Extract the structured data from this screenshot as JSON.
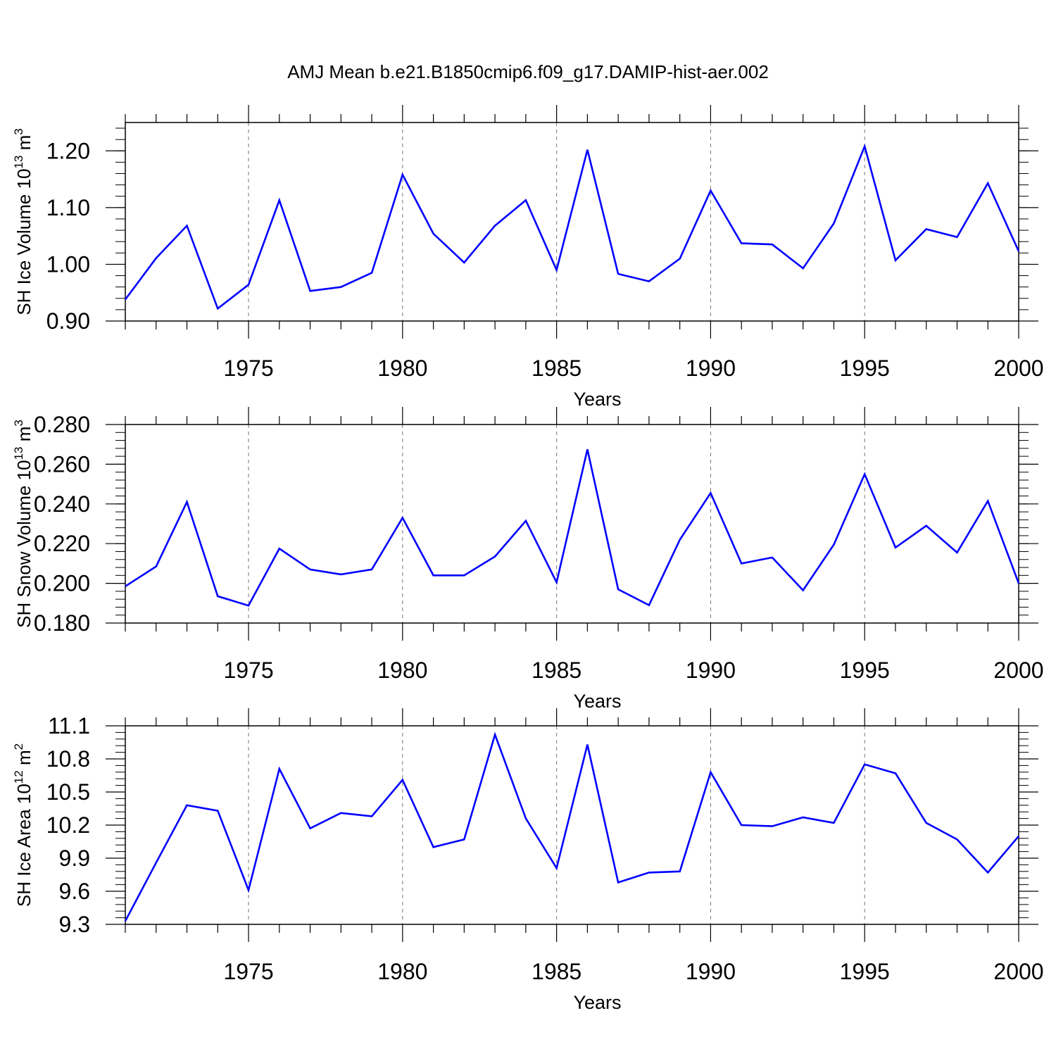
{
  "title": "AMJ Mean b.e21.B1850cmip6.f09_g17.DAMIP-hist-aer.002",
  "line_color": "#0000ff",
  "chart_data": [
    {
      "type": "line",
      "title": "",
      "xlabel": "Years",
      "ylabel": "SH Ice Volume 10",
      "ylabel_sup": "13",
      "ylabel_unit": " m",
      "ylabel_unit_sup": "3",
      "xlim": [
        1971,
        2000
      ],
      "ylim": [
        0.9,
        1.25
      ],
      "x_ticks": [
        1975,
        1980,
        1985,
        1990,
        1995,
        2000
      ],
      "y_ticks": [
        0.9,
        1.0,
        1.1,
        1.2
      ],
      "y_tick_labels": [
        "0.90",
        "1.00",
        "1.10",
        "1.20"
      ],
      "grid": "vertical dashed at major x ticks",
      "series": [
        {
          "x": [
            1971,
            1972,
            1973,
            1974,
            1975,
            1976,
            1977,
            1978,
            1979,
            1980,
            1981,
            1982,
            1983,
            1984,
            1985,
            1986,
            1987,
            1988,
            1989,
            1990,
            1991,
            1992,
            1993,
            1994,
            1995,
            1996,
            1997,
            1998,
            1999,
            2000
          ],
          "values": [
            0.938,
            1.011,
            1.068,
            0.922,
            0.964,
            1.113,
            0.953,
            0.96,
            0.985,
            1.158,
            1.054,
            1.003,
            1.068,
            1.113,
            0.99,
            1.202,
            0.983,
            0.97,
            1.01,
            1.13,
            1.037,
            1.035,
            0.993,
            1.072,
            1.208,
            1.007,
            1.062,
            1.048,
            1.143,
            1.023
          ]
        }
      ]
    },
    {
      "type": "line",
      "title": "",
      "xlabel": "Years",
      "ylabel": "SH Snow Volume 10",
      "ylabel_sup": "13",
      "ylabel_unit": " m",
      "ylabel_unit_sup": "3",
      "xlim": [
        1971,
        2000
      ],
      "ylim": [
        0.18,
        0.28
      ],
      "x_ticks": [
        1975,
        1980,
        1985,
        1990,
        1995,
        2000
      ],
      "y_ticks": [
        0.18,
        0.2,
        0.22,
        0.24,
        0.26,
        0.28
      ],
      "y_tick_labels": [
        "0.180",
        "0.200",
        "0.220",
        "0.240",
        "0.260",
        "0.280"
      ],
      "grid": "vertical dashed at major x ticks",
      "series": [
        {
          "x": [
            1971,
            1972,
            1973,
            1974,
            1975,
            1976,
            1977,
            1978,
            1979,
            1980,
            1981,
            1982,
            1983,
            1984,
            1985,
            1986,
            1987,
            1988,
            1989,
            1990,
            1991,
            1992,
            1993,
            1994,
            1995,
            1996,
            1997,
            1998,
            1999,
            2000
          ],
          "values": [
            0.1985,
            0.2085,
            0.241,
            0.1935,
            0.1888,
            0.2175,
            0.207,
            0.2045,
            0.207,
            0.233,
            0.204,
            0.204,
            0.2135,
            0.2315,
            0.2005,
            0.2675,
            0.197,
            0.189,
            0.222,
            0.2455,
            0.21,
            0.213,
            0.1965,
            0.2195,
            0.255,
            0.218,
            0.229,
            0.2155,
            0.2415,
            0.2
          ]
        }
      ]
    },
    {
      "type": "line",
      "title": "",
      "xlabel": "Years",
      "ylabel": "SH Ice Area 10",
      "ylabel_sup": "12",
      "ylabel_unit": " m",
      "ylabel_unit_sup": "2",
      "xlim": [
        1971,
        2000
      ],
      "ylim": [
        9.3,
        11.1
      ],
      "x_ticks": [
        1975,
        1980,
        1985,
        1990,
        1995,
        2000
      ],
      "y_ticks": [
        9.3,
        9.6,
        9.9,
        10.2,
        10.5,
        10.8,
        11.1
      ],
      "y_tick_labels": [
        "9.3",
        "9.6",
        "9.9",
        "10.2",
        "10.5",
        "10.8",
        "11.1"
      ],
      "grid": "vertical dashed at major x ticks",
      "series": [
        {
          "x": [
            1971,
            1972,
            1973,
            1974,
            1975,
            1976,
            1977,
            1978,
            1979,
            1980,
            1981,
            1982,
            1983,
            1984,
            1985,
            1986,
            1987,
            1988,
            1989,
            1990,
            1991,
            1992,
            1993,
            1994,
            1995,
            1996,
            1997,
            1998,
            1999,
            2000
          ],
          "values": [
            9.33,
            9.86,
            10.38,
            10.33,
            9.61,
            10.71,
            10.17,
            10.31,
            10.28,
            10.61,
            10.0,
            10.07,
            11.02,
            10.26,
            9.81,
            10.93,
            9.68,
            9.77,
            9.78,
            10.68,
            10.2,
            10.19,
            10.27,
            10.22,
            10.75,
            10.67,
            10.22,
            10.07,
            9.77,
            10.1
          ]
        }
      ]
    }
  ]
}
